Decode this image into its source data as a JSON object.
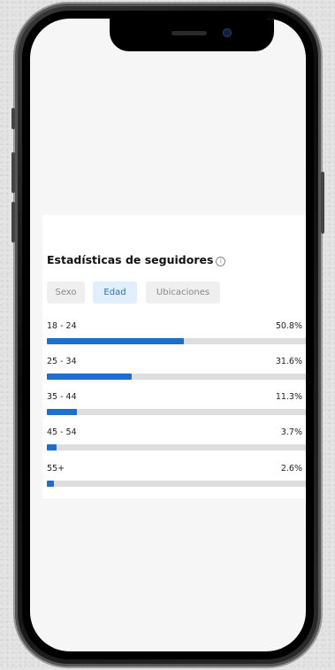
{
  "stats": {
    "title": "Estadísticas de seguidores",
    "info_symbol": "i",
    "tabs": [
      {
        "label": "Sexo",
        "active": false
      },
      {
        "label": "Edad",
        "active": true
      },
      {
        "label": "Ubicaciones",
        "active": false
      }
    ],
    "rows": [
      {
        "label": "18 - 24",
        "value": "50.8%",
        "fraction": 0.508
      },
      {
        "label": "25 - 34",
        "value": "31.6%",
        "fraction": 0.316
      },
      {
        "label": "35 - 44",
        "value": "11.3%",
        "fraction": 0.113
      },
      {
        "label": "45 - 54",
        "value": "3.7%",
        "fraction": 0.037
      },
      {
        "label": "55+",
        "value": "2.6%",
        "fraction": 0.026
      }
    ]
  },
  "colors": {
    "bar_fill": "#1a6fd1",
    "bar_track": "#dedede",
    "active_tab_bg": "#e1eefb",
    "active_tab_text": "#2e6fb6"
  }
}
